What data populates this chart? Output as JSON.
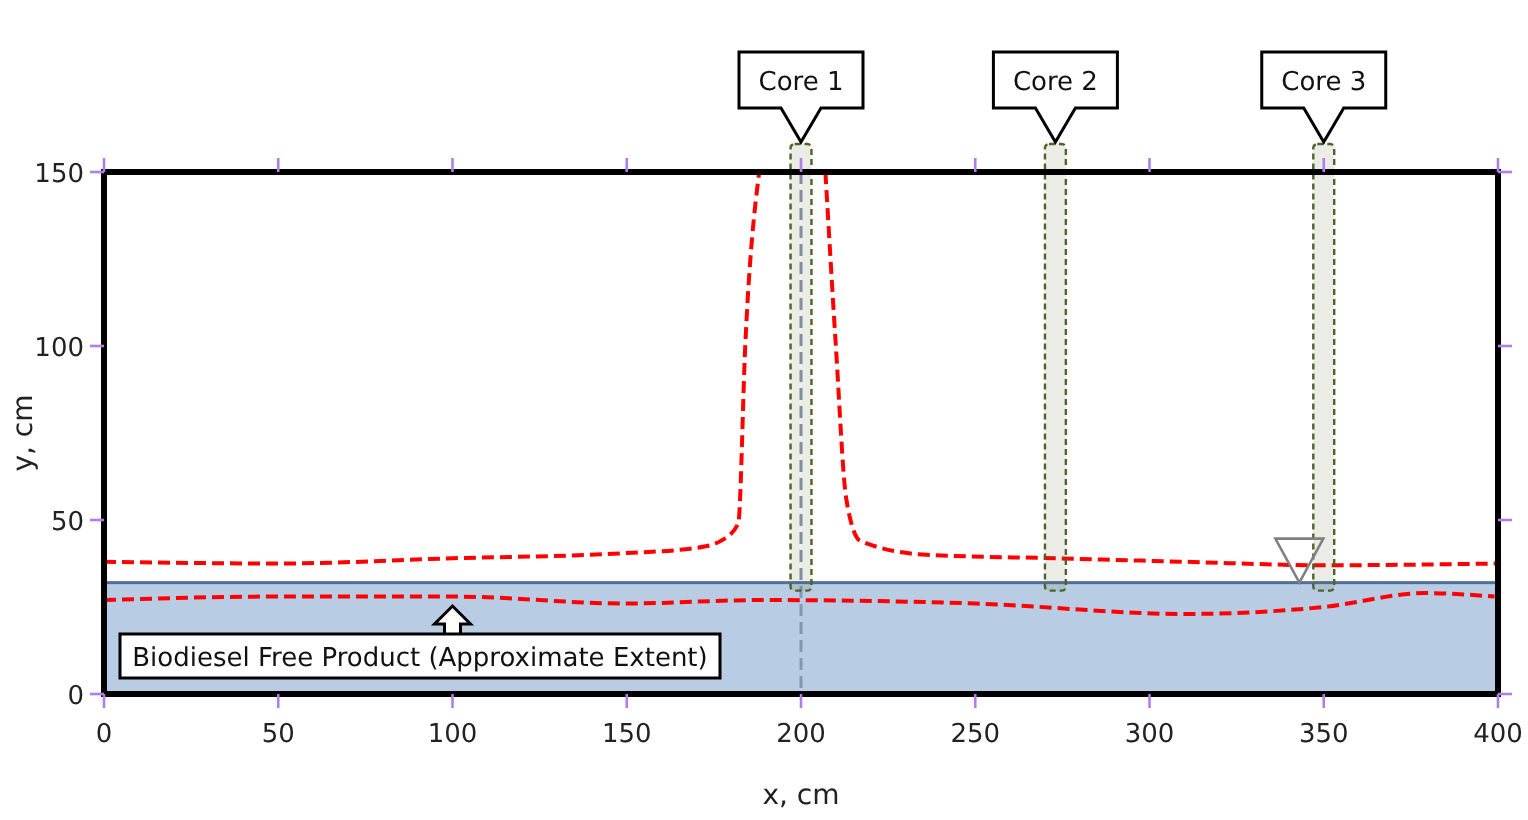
{
  "chart_data": {
    "type": "line",
    "xlabel": "x, cm",
    "ylabel": "y, cm",
    "xlim": [
      0,
      400
    ],
    "ylim": [
      0,
      150
    ],
    "xticks": [
      0,
      50,
      100,
      150,
      200,
      250,
      300,
      350,
      400
    ],
    "yticks": [
      0,
      50,
      100,
      150
    ],
    "grid": false,
    "line_style": "dashed",
    "marker": "none",
    "series": [
      {
        "color": "#ff0000",
        "x": [
          0,
          50,
          100,
          150,
          170,
          177,
          182,
          184,
          188,
          null,
          207,
          210,
          213,
          217,
          236,
          273,
          310,
          350,
          400
        ],
        "values": [
          38,
          37.5,
          39,
          40.5,
          42,
          44,
          49,
          100,
          150,
          null,
          150,
          100,
          56,
          44,
          40,
          39,
          38,
          37,
          37.5
        ]
      },
      {
        "color": "#ff0000",
        "x": [
          0,
          50,
          100,
          150,
          188,
          250,
          310,
          350,
          379,
          399
        ],
        "values": [
          27,
          28,
          28,
          26,
          27,
          26,
          23,
          25,
          29,
          28
        ]
      }
    ],
    "bands": [
      {
        "axis": "y",
        "from": 0,
        "to": 32,
        "label": "Biodiesel Free Product (Approximate Extent)",
        "color": "#b8cce4"
      },
      {
        "axis": "x",
        "from": 197,
        "to": 203,
        "label": "Core 1",
        "color": "#4f6228"
      },
      {
        "axis": "x",
        "from": 270,
        "to": 276,
        "label": "Core 2",
        "color": "#4f6228"
      },
      {
        "axis": "x",
        "from": 347,
        "to": 353,
        "label": "Core 3",
        "color": "#4f6228"
      }
    ],
    "ref_lines": [
      {
        "axis": "x",
        "value": 200,
        "color": "#8496b0",
        "line_style": "dashed"
      }
    ],
    "tick_labels": "xy"
  }
}
